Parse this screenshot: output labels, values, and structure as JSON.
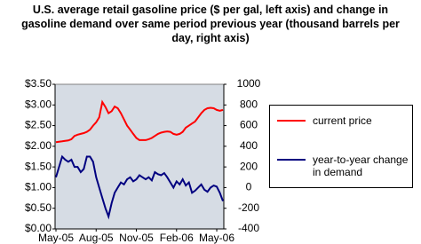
{
  "chart_data": {
    "type": "line",
    "title": "U.S. average retail gasoline price ($ per gal, left axis) and change in gasoline demand over same period previous year (thousand barrels per day, right axis)",
    "categories": [
      "May-05",
      null,
      null,
      null,
      null,
      null,
      null,
      null,
      null,
      null,
      null,
      null,
      null,
      "Aug-05",
      null,
      null,
      null,
      null,
      null,
      null,
      null,
      null,
      null,
      null,
      null,
      null,
      "Nov-05",
      null,
      null,
      null,
      null,
      null,
      null,
      null,
      null,
      null,
      null,
      null,
      null,
      "Feb-06",
      null,
      null,
      null,
      null,
      null,
      null,
      null,
      null,
      null,
      null,
      null,
      null,
      "May-06",
      null,
      null
    ],
    "series": [
      {
        "name": "current price",
        "color": "#ff0000",
        "values": [
          2.1,
          2.11,
          2.12,
          2.13,
          2.14,
          2.17,
          2.25,
          2.28,
          2.3,
          2.32,
          2.35,
          2.4,
          2.5,
          2.58,
          2.7,
          3.07,
          2.95,
          2.8,
          2.85,
          2.96,
          2.92,
          2.8,
          2.65,
          2.5,
          2.4,
          2.3,
          2.2,
          2.15,
          2.15,
          2.15,
          2.17,
          2.2,
          2.25,
          2.3,
          2.33,
          2.35,
          2.36,
          2.35,
          2.3,
          2.28,
          2.3,
          2.35,
          2.45,
          2.5,
          2.55,
          2.6,
          2.7,
          2.8,
          2.88,
          2.92,
          2.93,
          2.92,
          2.88,
          2.86,
          2.88
        ]
      },
      {
        "name": "year-to-year change in demand",
        "color": "#000080",
        "axis": "y2",
        "values": [
          100,
          200,
          300,
          270,
          250,
          270,
          200,
          200,
          150,
          180,
          300,
          300,
          250,
          100,
          0,
          -100,
          -200,
          -280,
          -150,
          -50,
          0,
          50,
          30,
          80,
          100,
          60,
          80,
          120,
          100,
          80,
          100,
          70,
          150,
          130,
          120,
          140,
          100,
          50,
          0,
          60,
          30,
          80,
          20,
          50,
          -50,
          -30,
          0,
          30,
          -20,
          -40,
          0,
          20,
          10,
          -50,
          -130
        ]
      }
    ],
    "ylim": [
      0,
      3.5
    ],
    "yticks": [
      {
        "value": 0,
        "label": "$0.00"
      },
      {
        "value": 0.5,
        "label": "$0.50"
      },
      {
        "value": 1,
        "label": "$1.00"
      },
      {
        "value": 1.5,
        "label": "$1.50"
      },
      {
        "value": 2,
        "label": "$2.00"
      },
      {
        "value": 2.5,
        "label": "$2.50"
      },
      {
        "value": 3,
        "label": "$3.00"
      },
      {
        "value": 3.5,
        "label": "$3.50"
      }
    ],
    "y2lim": [
      -400,
      1000
    ],
    "y2ticks": [
      -400,
      -200,
      0,
      200,
      400,
      600,
      800,
      1000
    ],
    "grid": false,
    "legend": "right"
  }
}
